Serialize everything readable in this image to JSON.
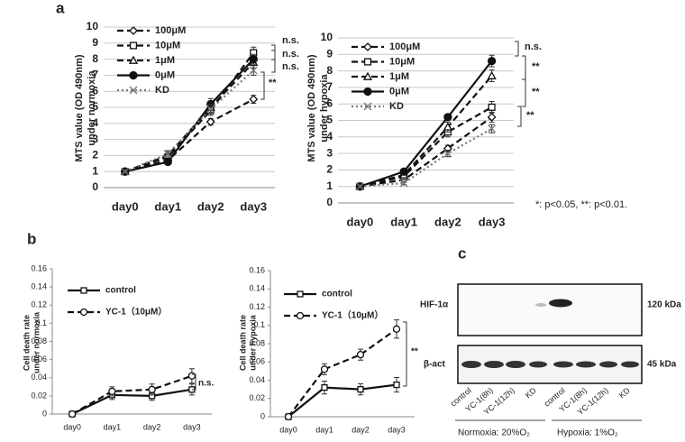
{
  "panel_labels": [
    "a",
    "b",
    "c"
  ],
  "footnote": "*: p<0.05, **: p<0.01.",
  "chart_data": [
    {
      "type": "line",
      "y_label": [
        "MTS value (OD 490nm)",
        "under normoxia"
      ],
      "categories": [
        "day0",
        "day1",
        "day2",
        "day3"
      ],
      "ylim": [
        0,
        10
      ],
      "yticks": [
        0,
        1,
        2,
        3,
        4,
        5,
        6,
        7,
        8,
        9,
        10
      ],
      "grid": true,
      "series": [
        {
          "name": "100μM",
          "color": "#111111",
          "marker": "diamond",
          "line_style": "dashed",
          "values": [
            1,
            1.7,
            4.1,
            5.5
          ],
          "errors": [
            0.05,
            0.15,
            0.2,
            0.25
          ]
        },
        {
          "name": "10μM",
          "color": "#111111",
          "marker": "square",
          "line_style": "dashed",
          "values": [
            1,
            1.9,
            4.8,
            8.4
          ],
          "errors": [
            0.05,
            0.2,
            0.3,
            0.35
          ]
        },
        {
          "name": "1μM",
          "color": "#111111",
          "marker": "triangle",
          "line_style": "dashed",
          "values": [
            1,
            2.0,
            5.0,
            7.8
          ],
          "errors": [
            0.05,
            0.2,
            0.3,
            0.35
          ]
        },
        {
          "name": "0μM",
          "color": "#111111",
          "marker": "circle",
          "line_style": "solid",
          "values": [
            1,
            1.6,
            5.2,
            8.0
          ],
          "errors": [
            0.05,
            0.15,
            0.35,
            0.3
          ]
        },
        {
          "name": "KD",
          "color": "#777777",
          "marker": "x",
          "line_style": "dotted",
          "values": [
            1,
            2.1,
            4.9,
            7.3
          ],
          "errors": [
            0.05,
            0.2,
            0.3,
            0.3
          ]
        }
      ],
      "annotations": [
        "n.s.",
        "n.s.",
        "n.s.",
        "**"
      ]
    },
    {
      "type": "line",
      "y_label": [
        "MTS value (OD 490nm)",
        "under hypoxia"
      ],
      "categories": [
        "day0",
        "day1",
        "day2",
        "day3"
      ],
      "ylim": [
        0,
        10
      ],
      "yticks": [
        0,
        1,
        2,
        3,
        4,
        5,
        6,
        7,
        8,
        9,
        10
      ],
      "grid": true,
      "series": [
        {
          "name": "100μM",
          "color": "#111111",
          "marker": "diamond",
          "line_style": "dashed",
          "values": [
            1,
            1.4,
            3.3,
            5.2
          ],
          "errors": [
            0.05,
            0.15,
            0.2,
            0.3
          ]
        },
        {
          "name": "10μM",
          "color": "#111111",
          "marker": "square",
          "line_style": "dashed",
          "values": [
            1,
            1.6,
            4.3,
            5.8
          ],
          "errors": [
            0.05,
            0.15,
            0.3,
            0.35
          ]
        },
        {
          "name": "1μM",
          "color": "#111111",
          "marker": "triangle",
          "line_style": "dashed",
          "values": [
            1,
            1.7,
            4.6,
            7.7
          ],
          "errors": [
            0.05,
            0.15,
            0.3,
            0.35
          ]
        },
        {
          "name": "0μM",
          "color": "#111111",
          "marker": "circle",
          "line_style": "solid",
          "values": [
            1,
            1.9,
            5.2,
            8.6
          ],
          "errors": [
            0.05,
            0.15,
            0.15,
            0.35
          ]
        },
        {
          "name": "KD",
          "color": "#777777",
          "marker": "x",
          "line_style": "dotted",
          "values": [
            1,
            1.2,
            3.0,
            4.5
          ],
          "errors": [
            0.05,
            0.1,
            0.2,
            0.25
          ]
        }
      ],
      "annotations": [
        "n.s.",
        "**",
        "**",
        "**"
      ]
    },
    {
      "type": "line",
      "y_label": [
        "Cell death rate",
        "under normoxia"
      ],
      "categories": [
        "day0",
        "day1",
        "day2",
        "day3"
      ],
      "ylim": [
        0,
        0.16
      ],
      "yticks": [
        0,
        0.02,
        0.04,
        0.06,
        0.08,
        0.1,
        0.12,
        0.14,
        0.16
      ],
      "grid": false,
      "series": [
        {
          "name": "control",
          "color": "#111111",
          "marker": "square",
          "line_style": "solid",
          "values": [
            0,
            0.021,
            0.02,
            0.027
          ],
          "errors": [
            0,
            0.005,
            0.005,
            0.006
          ]
        },
        {
          "name": "YC-1（10μM）",
          "color": "#111111",
          "marker": "circle-open",
          "line_style": "dashed",
          "values": [
            0,
            0.025,
            0.027,
            0.042
          ],
          "errors": [
            0,
            0.005,
            0.006,
            0.008
          ]
        }
      ],
      "annotations": [
        "n.s."
      ]
    },
    {
      "type": "line",
      "y_label": [
        "Cell death rate",
        "under hypoxia"
      ],
      "categories": [
        "day0",
        "day1",
        "day2",
        "day3"
      ],
      "ylim": [
        0,
        0.16
      ],
      "yticks": [
        0,
        0.02,
        0.04,
        0.06,
        0.08,
        0.1,
        0.12,
        0.14,
        0.16
      ],
      "grid": false,
      "series": [
        {
          "name": "control",
          "color": "#111111",
          "marker": "square",
          "line_style": "solid",
          "values": [
            0,
            0.032,
            0.03,
            0.035
          ],
          "errors": [
            0,
            0.007,
            0.006,
            0.008
          ]
        },
        {
          "name": "YC-1（10μM）",
          "color": "#111111",
          "marker": "circle-open",
          "line_style": "dashed",
          "values": [
            0,
            0.052,
            0.068,
            0.096
          ],
          "errors": [
            0,
            0.006,
            0.006,
            0.01
          ]
        }
      ],
      "annotations": [
        "**"
      ]
    }
  ],
  "blot": {
    "rows": [
      {
        "label": "HIF-1α",
        "size": "120 kDa"
      },
      {
        "label": "β-act",
        "size": "45 kDa"
      }
    ],
    "lanes": [
      "control",
      "YC-1(8h)",
      "YC-1(12h)",
      "KD",
      "control",
      "YC-1(8h)",
      "YC-1(12h)",
      "KD"
    ],
    "groups": [
      "Normoxia: 20%O₂",
      "Hypoxia: 1%O₂"
    ]
  }
}
